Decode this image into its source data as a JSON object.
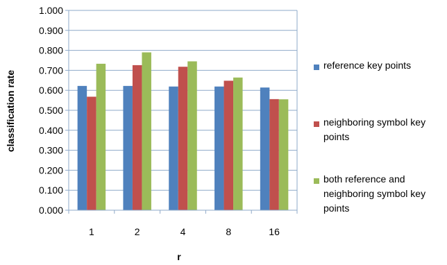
{
  "chart_data": {
    "type": "bar",
    "categories": [
      "1",
      "2",
      "4",
      "8",
      "16"
    ],
    "series": [
      {
        "name": "reference key points",
        "color": "#4F81BD",
        "values": [
          0.622,
          0.622,
          0.619,
          0.619,
          0.614
        ]
      },
      {
        "name": "neighboring symbol key points",
        "color": "#C0504D",
        "values": [
          0.568,
          0.726,
          0.718,
          0.648,
          0.556
        ]
      },
      {
        "name": "both reference and neighboring symbol key points",
        "color": "#9BBB59",
        "values": [
          0.733,
          0.79,
          0.745,
          0.664,
          0.555
        ]
      }
    ],
    "xlabel": "r",
    "ylabel": "classification rate",
    "ylim": [
      0,
      1
    ],
    "yticks": [
      "0.000",
      "0.100",
      "0.200",
      "0.300",
      "0.400",
      "0.500",
      "0.600",
      "0.700",
      "0.800",
      "0.900",
      "1.000"
    ],
    "grid": true,
    "legend_position": "right"
  }
}
